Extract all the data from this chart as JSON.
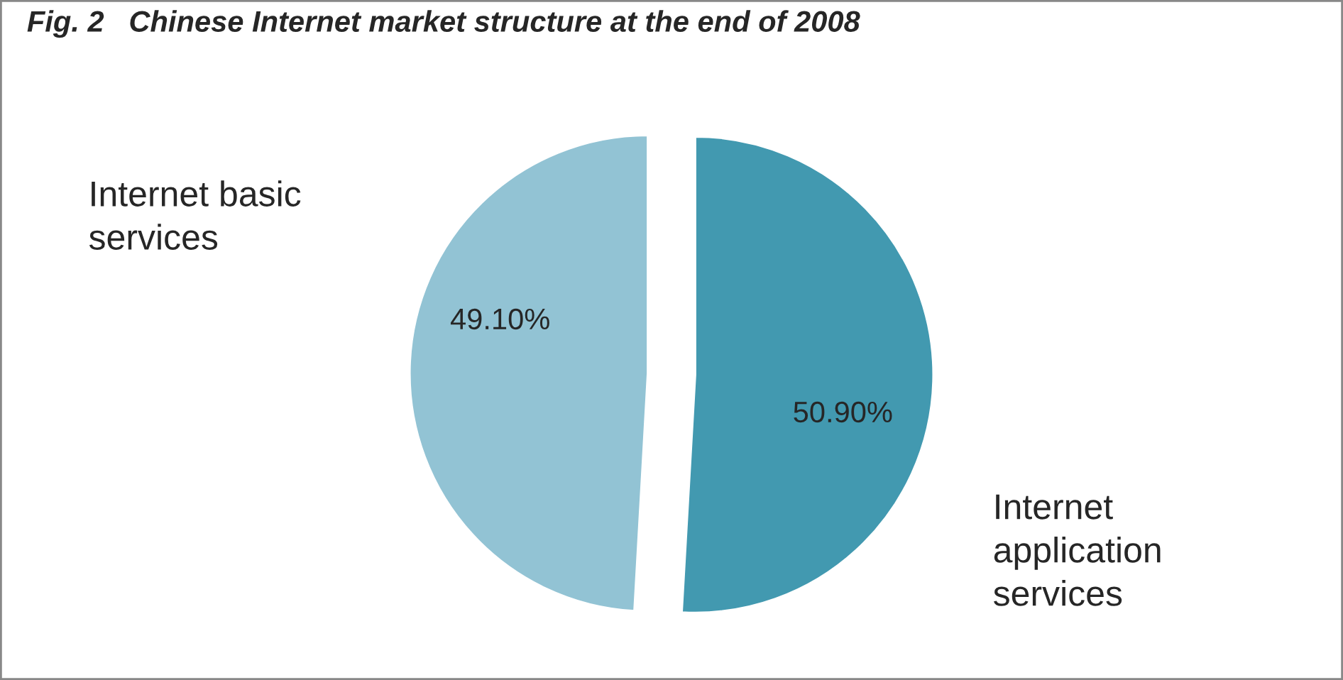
{
  "chart_data": {
    "type": "pie",
    "title": "Fig. 2   Chinese Internet market structure at the end of 2008",
    "categories": [
      "Internet basic services",
      "Internet application services"
    ],
    "values": [
      49.1,
      50.9
    ],
    "colors": [
      "#92c3d4",
      "#4299b0"
    ],
    "value_labels": [
      "49.10%",
      "50.90%"
    ],
    "legend": false
  }
}
